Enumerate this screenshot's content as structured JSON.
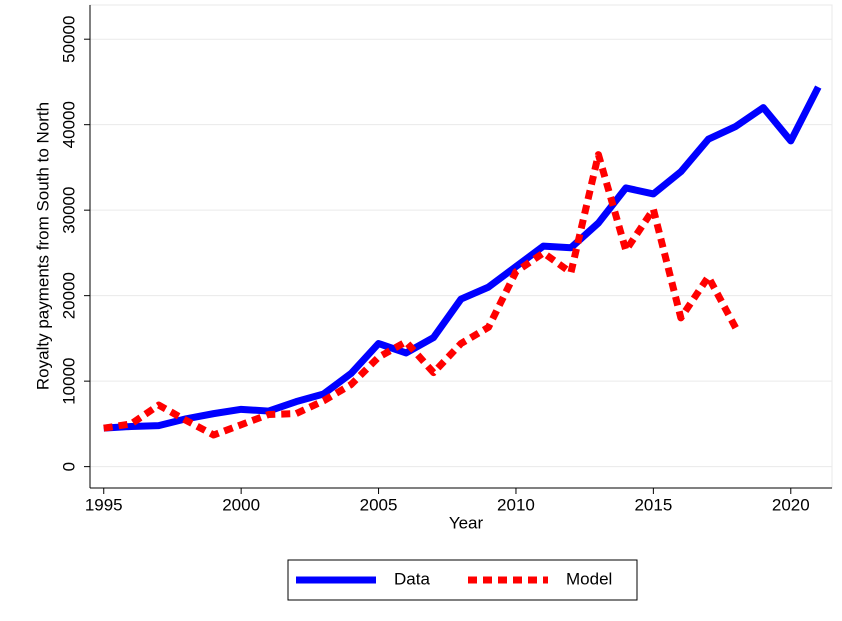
{
  "chart_data": {
    "type": "line",
    "x_label": "Year",
    "y_label": "Royalty payments from South to North",
    "x": [
      1995,
      1996,
      1997,
      1998,
      1999,
      2000,
      2001,
      2002,
      2003,
      2004,
      2005,
      2006,
      2007,
      2008,
      2009,
      2010,
      2011,
      2012,
      2013,
      2014,
      2015,
      2016,
      2017,
      2018,
      2019,
      2020,
      2021
    ],
    "series": [
      {
        "name": "Data",
        "color": "#0000ff",
        "dashed": false,
        "values": [
          4500,
          4700,
          4800,
          5600,
          6200,
          6700,
          6500,
          7600,
          8500,
          10900,
          14400,
          13300,
          15100,
          19600,
          21000,
          23400,
          25800,
          25600,
          28500,
          32600,
          31900,
          34500,
          38300,
          39800,
          42000,
          38100,
          44400
        ]
      },
      {
        "name": "Model",
        "color": "#ff0000",
        "dashed": true,
        "values": [
          4500,
          5000,
          7200,
          5400,
          3700,
          4900,
          6100,
          6200,
          7700,
          9600,
          12800,
          14600,
          11000,
          14400,
          16300,
          22800,
          25000,
          22700,
          36500,
          25300,
          30100,
          17400,
          22200,
          16200,
          null,
          null,
          null
        ]
      }
    ],
    "xlim": [
      1994.5,
      2021.5
    ],
    "xticks": [
      1995,
      2000,
      2005,
      2010,
      2015,
      2020
    ],
    "ylim": [
      -2500,
      54000
    ],
    "yticks": [
      0,
      10000,
      20000,
      30000,
      40000,
      50000
    ],
    "grid": true,
    "legend": "bottom"
  }
}
